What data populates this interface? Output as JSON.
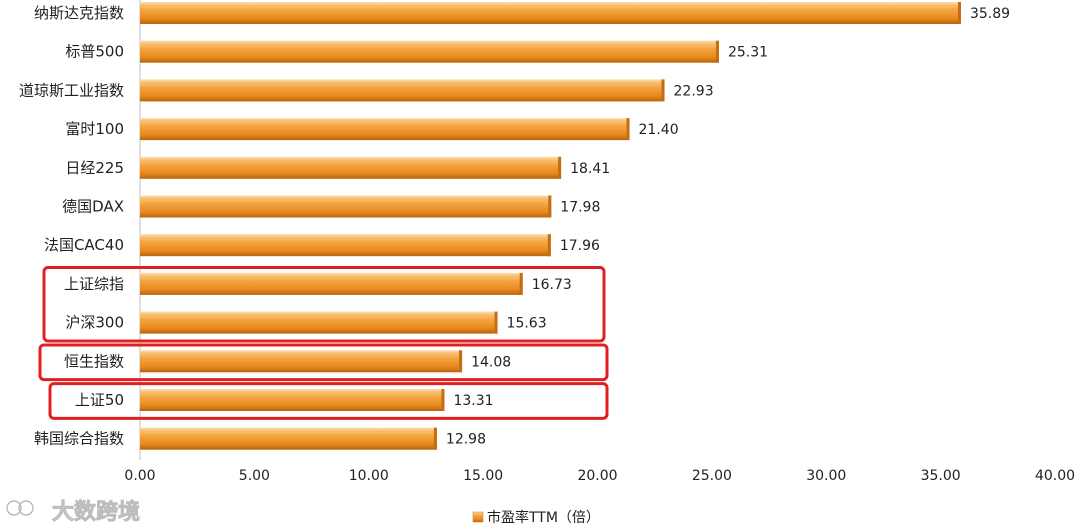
{
  "chart_data": {
    "type": "bar",
    "orientation": "horizontal",
    "categories": [
      "纳斯达克指数",
      "标普500",
      "道琼斯工业指数",
      "富时100",
      "日经225",
      "德国DAX",
      "法国CAC40",
      "上证综指",
      "沪深300",
      "恒生指数",
      "上证50",
      "韩国综合指数"
    ],
    "values": [
      35.89,
      25.31,
      22.93,
      21.4,
      18.41,
      17.98,
      17.96,
      16.73,
      15.63,
      14.08,
      13.31,
      12.98
    ],
    "value_labels": [
      "35.89",
      "25.31",
      "22.93",
      "21.40",
      "18.41",
      "17.98",
      "17.96",
      "16.73",
      "15.63",
      "14.08",
      "13.31",
      "12.98"
    ],
    "xlim": [
      0,
      40
    ],
    "x_ticks": [
      "0.00",
      "5.00",
      "10.00",
      "15.00",
      "20.00",
      "25.00",
      "30.00",
      "35.00",
      "40.00"
    ],
    "x_tick_values": [
      0,
      5,
      10,
      15,
      20,
      25,
      30,
      35,
      40
    ],
    "series": [
      {
        "name": "市盈率TTM（倍）"
      }
    ],
    "legend_position": "bottom",
    "grid": false,
    "highlight_groups": [
      [
        "上证综指",
        "沪深300"
      ],
      [
        "恒生指数"
      ],
      [
        "上证50"
      ]
    ],
    "bar_color": "#ef9a2e",
    "highlight_color": "#e02020"
  },
  "watermark": {
    "text": "大数跨境"
  }
}
